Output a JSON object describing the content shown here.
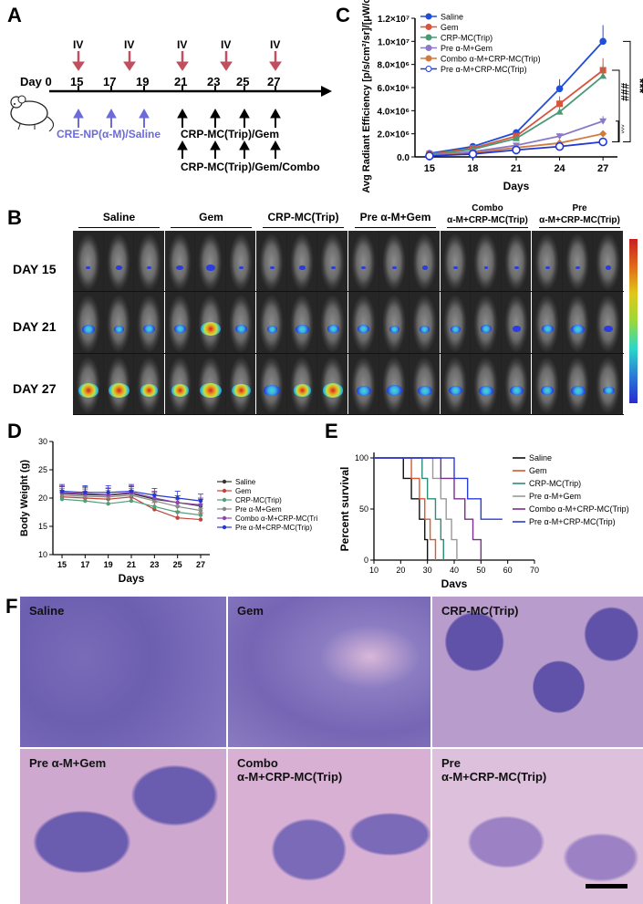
{
  "panels": {
    "A": "A",
    "B": "B",
    "C": "C",
    "D": "D",
    "E": "E",
    "F": "F"
  },
  "timeline": {
    "day0": "Day 0",
    "days": [
      "15",
      "17",
      "19",
      "21",
      "23",
      "25",
      "27"
    ],
    "iv_label": "IV",
    "iv_days": [
      "15",
      "19",
      "21",
      "25",
      "27"
    ],
    "pretreat_label": "CRE-NP(α-M)/Saline",
    "treat_line1": "CRP-MC(Trip)/Gem",
    "treat_line2": "CRP-MC(Trip)/Gem/Combo",
    "colors": {
      "iv_arrow": "#c0505f",
      "pretreat": "#6b6bd9"
    }
  },
  "imaging": {
    "groups": [
      "Saline",
      "Gem",
      "CRP-MC(Trip)",
      "Pre α-M+Gem",
      "Combo\nα-M+CRP-MC(Trip)",
      "Pre\nα-M+CRP-MC(Trip)"
    ],
    "days": [
      "DAY 15",
      "DAY 21",
      "DAY 27"
    ]
  },
  "histology": {
    "labels": [
      "Saline",
      "Gem",
      "CRP-MC(Trip)",
      "Pre α-M+Gem",
      "Combo\nα-M+CRP-MC(Trip)",
      "Pre\nα-M+CRP-MC(Trip)"
    ]
  },
  "chart_data": [
    {
      "panel": "C",
      "type": "line",
      "xlabel": "Days",
      "ylabel": "Avg Radiant Efficiency [p/s/cm²/sr]/[μW/cm²]",
      "x": [
        15,
        18,
        21,
        24,
        27
      ],
      "xlim": [
        14,
        28
      ],
      "ylim": [
        0,
        12000000
      ],
      "ytick_labels": [
        "0.0",
        "2.0×10⁶",
        "4.0×10⁶",
        "6.0×10⁶",
        "8.0×10⁶",
        "1.0×10⁷",
        "1.2×10⁷"
      ],
      "series": [
        {
          "name": "Saline",
          "color": "#1f4fd6",
          "marker": "circle",
          "values": [
            300000,
            900000,
            2100000,
            5900000,
            10000000
          ]
        },
        {
          "name": "Gem",
          "color": "#d9533d",
          "marker": "square",
          "values": [
            250000,
            750000,
            1800000,
            4600000,
            7500000
          ]
        },
        {
          "name": "CRP-MC(Trip)",
          "color": "#4a9a76",
          "marker": "triangle-up",
          "values": [
            200000,
            650000,
            1600000,
            3900000,
            7000000
          ]
        },
        {
          "name": "Pre α-M+Gem",
          "color": "#8a78c8",
          "marker": "triangle-down",
          "values": [
            150000,
            450000,
            1000000,
            1800000,
            3100000
          ]
        },
        {
          "name": "Combo α-M+CRP-MC(Trip)",
          "color": "#d07a3f",
          "marker": "diamond",
          "values": [
            100000,
            350000,
            800000,
            1200000,
            2000000
          ]
        },
        {
          "name": "Pre α-M+CRP-MC(Trip)",
          "color": "#2338d6",
          "marker": "open-circle",
          "values": [
            80000,
            250000,
            600000,
            900000,
            1300000
          ]
        }
      ],
      "annotations": [
        "***",
        "###",
        "^^^"
      ]
    },
    {
      "panel": "D",
      "type": "line",
      "xlabel": "Days",
      "ylabel": "Body Weight (g)",
      "x": [
        15,
        17,
        19,
        21,
        23,
        25,
        27
      ],
      "ylim": [
        10,
        30
      ],
      "ytick_labels": [
        "10",
        "15",
        "20",
        "25",
        "30"
      ],
      "series": [
        {
          "name": "Saline",
          "color": "#333333",
          "values": [
            20.8,
            20.6,
            20.5,
            20.8,
            19.8,
            19.2,
            18.6
          ]
        },
        {
          "name": "Gem",
          "color": "#c1443a",
          "values": [
            20.2,
            20.0,
            19.8,
            20.2,
            18.0,
            16.5,
            16.2
          ]
        },
        {
          "name": "CRP-MC(Trip)",
          "color": "#4fa07a",
          "values": [
            19.8,
            19.5,
            19.0,
            19.5,
            18.5,
            17.5,
            17.0
          ]
        },
        {
          "name": "Pre α-M+Gem",
          "color": "#888888",
          "values": [
            20.5,
            20.3,
            20.2,
            20.5,
            19.5,
            18.5,
            17.8
          ]
        },
        {
          "name": "Combo α-M+CRP-MC(Trip)",
          "color": "#8e44ad",
          "values": [
            21.0,
            20.8,
            20.6,
            21.0,
            20.0,
            19.2,
            18.8
          ]
        },
        {
          "name": "Pre α-M+CRP-MC(Trip)",
          "color": "#2438d0",
          "values": [
            21.2,
            21.0,
            21.0,
            21.2,
            20.5,
            20.0,
            19.5
          ]
        }
      ]
    },
    {
      "panel": "E",
      "type": "line",
      "xlabel": "Days",
      "ylabel": "Percent survival",
      "xlim": [
        10,
        70
      ],
      "ylim": [
        0,
        100
      ],
      "xtick_labels": [
        "10",
        "20",
        "30",
        "40",
        "50",
        "60",
        "70"
      ],
      "ytick_labels": [
        "0",
        "50",
        "100"
      ],
      "series": [
        {
          "name": "Saline",
          "color": "#111111",
          "steps": [
            [
              10,
              100
            ],
            [
              21,
              100
            ],
            [
              21,
              80
            ],
            [
              24,
              80
            ],
            [
              24,
              60
            ],
            [
              27,
              60
            ],
            [
              27,
              40
            ],
            [
              29,
              40
            ],
            [
              29,
              20
            ],
            [
              30,
              20
            ],
            [
              30,
              0
            ]
          ]
        },
        {
          "name": "Gem",
          "color": "#e0552a",
          "steps": [
            [
              10,
              100
            ],
            [
              24,
              100
            ],
            [
              24,
              80
            ],
            [
              27,
              80
            ],
            [
              27,
              60
            ],
            [
              29,
              60
            ],
            [
              29,
              40
            ],
            [
              31,
              40
            ],
            [
              31,
              20
            ],
            [
              33,
              20
            ],
            [
              33,
              0
            ]
          ]
        },
        {
          "name": "CRP-MC(Trip)",
          "color": "#2c8c7a",
          "steps": [
            [
              10,
              100
            ],
            [
              28,
              100
            ],
            [
              28,
              80
            ],
            [
              30,
              80
            ],
            [
              30,
              60
            ],
            [
              33,
              60
            ],
            [
              33,
              40
            ],
            [
              35,
              40
            ],
            [
              35,
              20
            ],
            [
              36,
              20
            ],
            [
              36,
              0
            ]
          ]
        },
        {
          "name": "Pre α-M+Gem",
          "color": "#999999",
          "steps": [
            [
              10,
              100
            ],
            [
              32,
              100
            ],
            [
              32,
              80
            ],
            [
              35,
              80
            ],
            [
              35,
              60
            ],
            [
              37,
              60
            ],
            [
              37,
              40
            ],
            [
              39,
              40
            ],
            [
              39,
              20
            ],
            [
              41,
              20
            ],
            [
              41,
              0
            ]
          ]
        },
        {
          "name": "Combo α-M+CRP-MC(Trip)",
          "color": "#7a2f8e",
          "steps": [
            [
              10,
              100
            ],
            [
              35,
              100
            ],
            [
              35,
              80
            ],
            [
              40,
              80
            ],
            [
              40,
              60
            ],
            [
              44,
              60
            ],
            [
              44,
              40
            ],
            [
              47,
              40
            ],
            [
              47,
              20
            ],
            [
              50,
              20
            ],
            [
              50,
              0
            ]
          ]
        },
        {
          "name": "Pre α-M+CRP-MC(Trip)",
          "color": "#2b3bd9",
          "steps": [
            [
              10,
              100
            ],
            [
              40,
              100
            ],
            [
              40,
              80
            ],
            [
              45,
              80
            ],
            [
              45,
              60
            ],
            [
              50,
              60
            ],
            [
              50,
              40
            ],
            [
              58,
              40
            ]
          ]
        }
      ]
    }
  ]
}
